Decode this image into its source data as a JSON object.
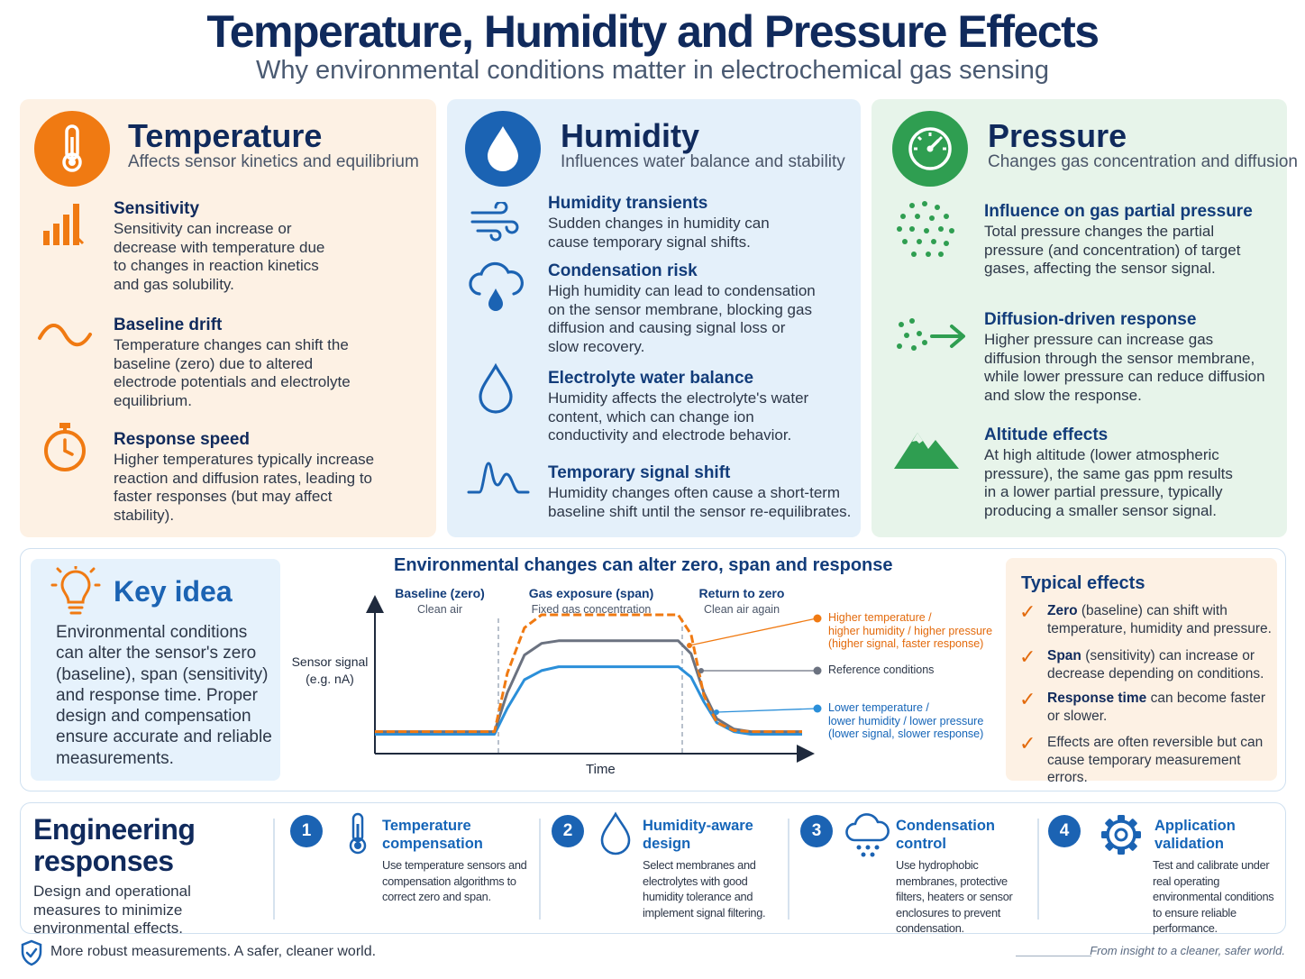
{
  "header": {
    "title": "Temperature, Humidity and Pressure Effects",
    "subtitle": "Why environmental conditions matter in electrochemical gas sensing"
  },
  "colors": {
    "temperature": "#f07a12",
    "humidity": "#1b63b3",
    "pressure": "#2f9e51",
    "navy": "#102a5c"
  },
  "temperature": {
    "title": "Temperature",
    "subtitle": "Affects sensor kinetics and equilibrium",
    "icon": "thermometer-icon",
    "items": [
      {
        "icon": "bar-chart-icon",
        "title": "Sensitivity",
        "body": "Sensitivity can increase or decrease with temperature due to changes in reaction kinetics and gas solubility."
      },
      {
        "icon": "wave-icon",
        "title": "Baseline drift",
        "body": "Temperature changes can shift the baseline (zero) due to altered electrode potentials and electrolyte equilibrium."
      },
      {
        "icon": "stopwatch-icon",
        "title": "Response speed",
        "body": "Higher temperatures typically increase reaction and diffusion rates, leading to faster responses (but may affect stability)."
      }
    ]
  },
  "humidity": {
    "title": "Humidity",
    "subtitle": "Influences water balance and stability",
    "icon": "water-drop-icon",
    "items": [
      {
        "icon": "wind-icon",
        "title": "Humidity transients",
        "body": "Sudden changes in humidity can cause temporary signal shifts."
      },
      {
        "icon": "cloud-drop-icon",
        "title": "Condensation risk",
        "body": "High humidity can lead to condensation on the sensor membrane, blocking gas diffusion and causing signal loss or slow recovery."
      },
      {
        "icon": "drop-outline-icon",
        "title": "Electrolyte water balance",
        "body": "Humidity affects the electrolyte's water content, which can change ion conductivity and electrode behavior."
      },
      {
        "icon": "signal-wave-icon",
        "title": "Temporary signal shift",
        "body": "Humidity changes often cause a short-term baseline shift until the sensor re-equilibrates."
      }
    ]
  },
  "pressure": {
    "title": "Pressure",
    "subtitle": "Changes gas concentration and diffusion",
    "icon": "gauge-icon",
    "items": [
      {
        "icon": "particles-icon",
        "title": "Influence on gas partial pressure",
        "body": "Total pressure changes the partial pressure (and concentration) of target gases, affecting the sensor signal."
      },
      {
        "icon": "diffusion-arrow-icon",
        "title": "Diffusion-driven response",
        "body": "Higher pressure can increase gas diffusion through the sensor membrane, while lower pressure can reduce diffusion and slow the response."
      },
      {
        "icon": "mountain-icon",
        "title": "Altitude effects",
        "body": "At high altitude (lower atmospheric pressure), the same gas ppm results in a lower partial pressure, typically producing a smaller sensor signal."
      }
    ]
  },
  "key_idea": {
    "title": "Key idea",
    "body": "Environmental conditions can alter the sensor's zero (baseline), span (sensitivity) and response time. Proper design and compensation ensure accurate and reliable measurements."
  },
  "chart_data": {
    "type": "line",
    "title": "Environmental changes can alter zero, span and response",
    "xlabel": "Time",
    "ylabel": "Sensor signal (e.g. nA)",
    "phases": [
      {
        "title": "Baseline (zero)",
        "subtitle": "Clean air"
      },
      {
        "title": "Gas exposure (span)",
        "subtitle": "Fixed gas concentration"
      },
      {
        "title": "Return to zero",
        "subtitle": "Clean air again"
      }
    ],
    "x": [
      0,
      0.28,
      0.31,
      0.35,
      0.39,
      0.43,
      0.47,
      0.71,
      0.74,
      0.77,
      0.8,
      0.84,
      0.88,
      1.0
    ],
    "series": [
      {
        "name": "Higher temperature / higher humidity / higher pressure (higher signal, faster response)",
        "color": "#f07a12",
        "dashed": true,
        "values": [
          0.1,
          0.1,
          0.55,
          0.9,
          1.0,
          1.0,
          1.0,
          1.0,
          0.85,
          0.38,
          0.17,
          0.11,
          0.1,
          0.1
        ]
      },
      {
        "name": "Reference conditions",
        "color": "#6b7280",
        "dashed": false,
        "values": [
          0.1,
          0.1,
          0.4,
          0.69,
          0.78,
          0.8,
          0.8,
          0.8,
          0.7,
          0.4,
          0.2,
          0.12,
          0.1,
          0.1
        ]
      },
      {
        "name": "Lower temperature / lower humidity / lower pressure (lower signal, slower response)",
        "color": "#2b8fd9",
        "dashed": false,
        "values": [
          0.08,
          0.08,
          0.28,
          0.5,
          0.57,
          0.6,
          0.6,
          0.6,
          0.52,
          0.33,
          0.17,
          0.1,
          0.08,
          0.08
        ]
      }
    ],
    "legend": [
      {
        "color": "#f07a12",
        "text": "Higher temperature / higher humidity / higher pressure (higher signal, faster response)",
        "lines": [
          "Higher temperature /",
          "higher humidity / higher pressure",
          "(higher signal, faster response)"
        ]
      },
      {
        "color": "#6b7280",
        "text": "Reference conditions",
        "lines": [
          "Reference conditions"
        ]
      },
      {
        "color": "#2b8fd9",
        "text": "Lower temperature / lower humidity / lower pressure (lower signal, slower response)",
        "lines": [
          "Lower temperature /",
          "lower humidity / lower pressure",
          "(lower signal, slower response)"
        ]
      }
    ],
    "grid": false,
    "legend_position": "right"
  },
  "typical": {
    "title": "Typical effects",
    "items": [
      {
        "bold": "Zero",
        "text": " (baseline) can shift with temperature, humidity and pressure."
      },
      {
        "bold": "Span",
        "text": " (sensitivity) can increase or decrease depending on conditions."
      },
      {
        "bold": "Response time",
        "text": " can become faster or slower."
      },
      {
        "bold": "",
        "text": "Effects are often reversible but can cause temporary measurement errors."
      }
    ]
  },
  "engineering": {
    "title": "Engineering responses",
    "subtitle": "Design and operational measures to minimize environmental effects.",
    "steps": [
      {
        "num": "1",
        "icon": "thermometer-icon",
        "title": "Temperature compensation",
        "body": "Use temperature sensors and compensation algorithms to correct zero and span."
      },
      {
        "num": "2",
        "icon": "water-drop-icon",
        "title": "Humidity-aware design",
        "body": "Select membranes and electrolytes with good humidity tolerance and implement signal filtering."
      },
      {
        "num": "3",
        "icon": "cloud-rain-icon",
        "title": "Condensation control",
        "body": "Use hydrophobic membranes, protective filters, heaters or sensor enclosures to prevent condensation."
      },
      {
        "num": "4",
        "icon": "gear-icon",
        "title": "Application validation",
        "body": "Test and calibrate under real operating environmental conditions to ensure reliable performance."
      }
    ]
  },
  "footer": {
    "left": "More robust measurements. A safer, cleaner world.",
    "right": "From insight to a cleaner, safer world.",
    "icon": "shield-check-icon"
  }
}
